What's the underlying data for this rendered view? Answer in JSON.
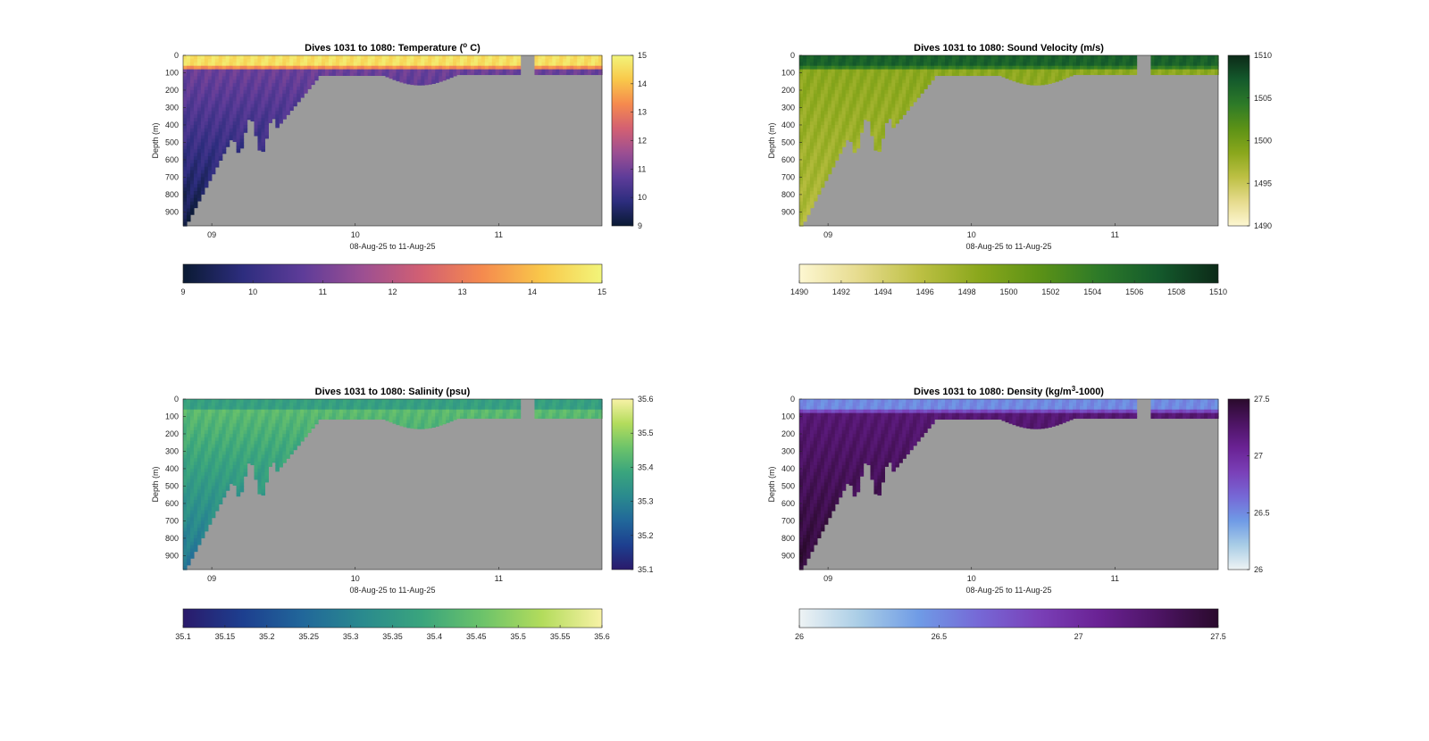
{
  "chart_data": [
    {
      "type": "heatmap",
      "title": "Dives 1031 to 1080: Temperature (",
      "title_sup": "o",
      "title_tail": " C)",
      "xlabel": "08-Aug-25 to 11-Aug-25",
      "ylabel": "Depth (m)",
      "xlim": [
        8.8,
        11.72
      ],
      "ylim": [
        0,
        980
      ],
      "xticks": [
        9,
        10,
        11
      ],
      "xtick_labels": [
        "09",
        "10",
        "11"
      ],
      "yticks": [
        0,
        100,
        200,
        300,
        400,
        500,
        600,
        700,
        800,
        900
      ],
      "clim": [
        9,
        15
      ],
      "colorbar_ticks": [
        "15",
        "14",
        "13",
        "12",
        "11",
        "10",
        "9"
      ],
      "horizontal_colorbar_ticks": [
        "9",
        "10",
        "11",
        "12",
        "13",
        "14",
        "15"
      ],
      "surface_value": 14.6,
      "mixed_value": 12.0,
      "deep_value": 10.9,
      "bottom_value": 9.3,
      "colormap": [
        "#0a1a33",
        "#2d2d7e",
        "#5e3c99",
        "#9c4f92",
        "#d36072",
        "#f58a4e",
        "#f9c84a",
        "#f2f57a"
      ]
    },
    {
      "type": "heatmap",
      "title": "Dives 1031 to 1080: Sound Velocity (m/s)",
      "xlabel": "08-Aug-25 to 11-Aug-25",
      "ylabel": "Depth (m)",
      "xlim": [
        8.8,
        11.72
      ],
      "ylim": [
        0,
        980
      ],
      "xticks": [
        9,
        10,
        11
      ],
      "xtick_labels": [
        "09",
        "10",
        "11"
      ],
      "yticks": [
        0,
        100,
        200,
        300,
        400,
        500,
        600,
        700,
        800,
        900
      ],
      "clim": [
        1490,
        1510
      ],
      "colorbar_ticks": [
        "1510",
        "1505",
        "1500",
        "1495",
        "1490"
      ],
      "horizontal_colorbar_ticks": [
        "1490",
        "1492",
        "1494",
        "1496",
        "1498",
        "1500",
        "1502",
        "1504",
        "1506",
        "1508",
        "1510"
      ],
      "surface_value": 1506.5,
      "mixed_value": 1501.5,
      "deep_value": 1498.5,
      "bottom_value": 1496.5,
      "colormap": [
        "#fdf7d2",
        "#e6db8d",
        "#bdc044",
        "#8aa71c",
        "#5c9216",
        "#2d7a28",
        "#145a2c",
        "#0c2a18"
      ]
    },
    {
      "type": "heatmap",
      "title": "Dives 1031 to 1080: Salinity (psu)",
      "xlabel": "08-Aug-25 to 11-Aug-25",
      "ylabel": "Depth (m)",
      "xlim": [
        8.8,
        11.72
      ],
      "ylim": [
        0,
        980
      ],
      "xticks": [
        9,
        10,
        11
      ],
      "xtick_labels": [
        "09",
        "10",
        "11"
      ],
      "yticks": [
        0,
        100,
        200,
        300,
        400,
        500,
        600,
        700,
        800,
        900
      ],
      "clim": [
        35.1,
        35.6
      ],
      "colorbar_ticks": [
        "35.6",
        "35.5",
        "35.4",
        "35.3",
        "35.2",
        "35.1"
      ],
      "horizontal_colorbar_ticks": [
        "35.1",
        "35.15",
        "35.2",
        "35.25",
        "35.3",
        "35.35",
        "35.4",
        "35.45",
        "35.5",
        "35.55",
        "35.6"
      ],
      "surface_value": 35.37,
      "mixed_value": 35.5,
      "deep_value": 35.43,
      "bottom_value": 35.28,
      "colormap": [
        "#2a1a6b",
        "#1d3f8f",
        "#21679a",
        "#2a8a8e",
        "#3aa57d",
        "#6cc36a",
        "#b3dc5c",
        "#f8f2a6"
      ]
    },
    {
      "type": "heatmap",
      "title": "Dives 1031 to 1080: Density (kg/m",
      "title_sup": "3",
      "title_tail": "-1000)",
      "xlabel": "08-Aug-25 to 11-Aug-25",
      "ylabel": "Depth (m)",
      "xlim": [
        8.8,
        11.72
      ],
      "ylim": [
        0,
        980
      ],
      "xticks": [
        9,
        10,
        11
      ],
      "xtick_labels": [
        "09",
        "10",
        "11"
      ],
      "yticks": [
        0,
        100,
        200,
        300,
        400,
        500,
        600,
        700,
        800,
        900
      ],
      "clim": [
        26,
        27.5
      ],
      "colorbar_ticks": [
        "27.5",
        "27",
        "26.5",
        "26"
      ],
      "horizontal_colorbar_ticks": [
        "26",
        "26.5",
        "27",
        "27.5"
      ],
      "surface_value": 26.5,
      "mixed_value": 27.12,
      "deep_value": 27.22,
      "bottom_value": 27.45,
      "colormap": [
        "#eef3f4",
        "#a9cde6",
        "#6f9be6",
        "#7668d6",
        "#7a40b8",
        "#6a2294",
        "#4d1464",
        "#2a0a2c"
      ]
    }
  ]
}
